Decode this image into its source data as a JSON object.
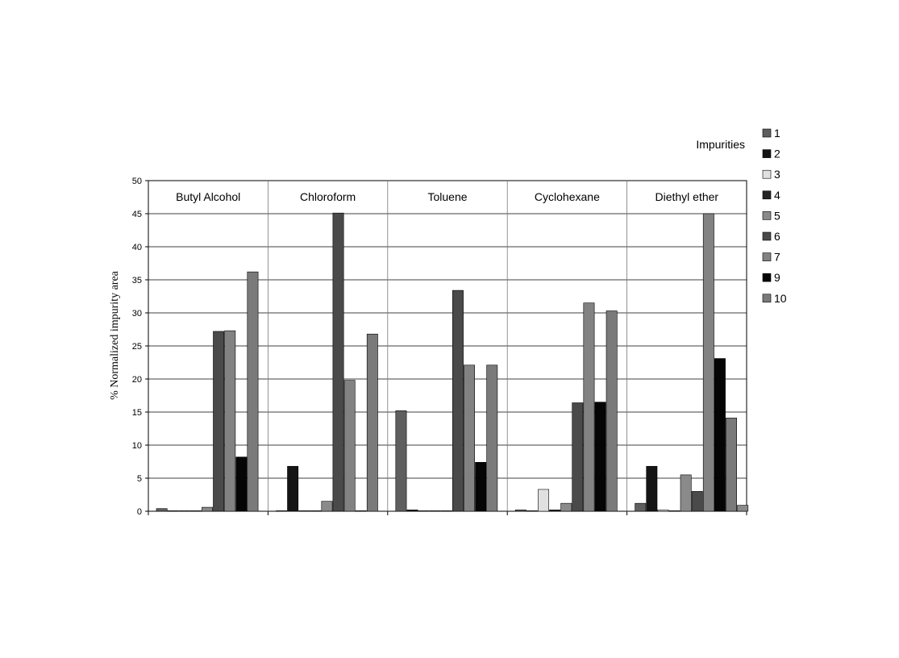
{
  "chart_data": {
    "type": "bar",
    "ylabel": "% Normalized impurity area",
    "ylim": [
      0,
      50
    ],
    "yticks": [
      0,
      5,
      10,
      15,
      20,
      25,
      30,
      35,
      40,
      45,
      50
    ],
    "grid": true,
    "legend_title": "Impurities",
    "legend_position": "top-right",
    "categories": [
      "Butyl Alcohol",
      "Chloroform",
      "Toluene",
      "Cyclohexane",
      "Diethyl ether"
    ],
    "series": [
      {
        "name": "1",
        "color": "#5f5f5f",
        "values": [
          0.4,
          0,
          15.2,
          0.2,
          1.2
        ]
      },
      {
        "name": "2",
        "color": "#151515",
        "values": [
          0,
          6.8,
          0.2,
          0,
          6.8
        ]
      },
      {
        "name": "3",
        "color": "#e0e0e0",
        "values": [
          0,
          0,
          0,
          3.3,
          0.2
        ]
      },
      {
        "name": "4",
        "color": "#262626",
        "values": [
          0,
          0,
          0,
          0.2,
          0
        ]
      },
      {
        "name": "5",
        "color": "#8a8a8a",
        "values": [
          0.6,
          1.5,
          0,
          1.2,
          5.5
        ]
      },
      {
        "name": "6",
        "color": "#4a4a4a",
        "values": [
          27.2,
          45.1,
          33.4,
          16.4,
          3.0
        ]
      },
      {
        "name": "7",
        "color": "#828282",
        "values": [
          27.3,
          19.8,
          22.1,
          31.5,
          45.0
        ]
      },
      {
        "name": "9",
        "color": "#050505",
        "values": [
          8.2,
          0,
          7.4,
          16.5,
          23.1
        ]
      },
      {
        "name": "10",
        "color": "#7a7a7a",
        "values": [
          36.2,
          26.8,
          22.1,
          30.3,
          14.1
        ]
      }
    ],
    "extra_bars_note": "",
    "diethyl_extra_value": 0.9
  }
}
